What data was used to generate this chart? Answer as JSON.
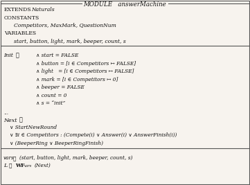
{
  "bg_color": "#f7f3ee",
  "border_color": "#555555",
  "text_color": "#111111",
  "figsize": [
    3.61,
    2.67
  ],
  "dpi": 100,
  "title_left": "MODULE  answerMachine",
  "header_lines": [
    [
      "EXTENDS ",
      "Naturals"
    ],
    [
      "CONSTANTS",
      ""
    ],
    [
      "    ",
      "Competitors, MaxMark, QuestionNum"
    ],
    [
      "VARIABLES",
      ""
    ],
    [
      "    ",
      "start, button, light, mark, beeper, count, s"
    ]
  ],
  "init_label": "Init",
  "init_def": "≜",
  "init_lines": [
    "∧ start = FALSE",
    "∧ button = [i ∈ Competitors ↦ FALSE]",
    "∧ light   = [i ∈ Competitors ↦ FALSE]",
    "∧ mark = [i ∈ Competitors ↦ 0]",
    "∧ beeper = FALSE",
    "∧ count = 0",
    "∧ s = “init”"
  ],
  "dots": "...",
  "next_label": "Next",
  "next_def": "≜",
  "next_lines": [
    "∨ StartNewRound",
    "∨ ∃i ∈ Competitors : (Compete(i) ∨ Answer(i) ∨ AnswerFinish(i))",
    "∨ (BeeperRing ∨ BeeperRingFinish)"
  ],
  "footer_line1_a": "vars",
  "footer_line1_b": "≜",
  "footer_line1_c": "(start, button, light, mark, beeper, count, s)",
  "footer_line2_a": "L",
  "footer_line2_b": "≜",
  "footer_line2_c": "WF",
  "footer_line2_sub": "vars",
  "footer_line2_d": "(Next)"
}
